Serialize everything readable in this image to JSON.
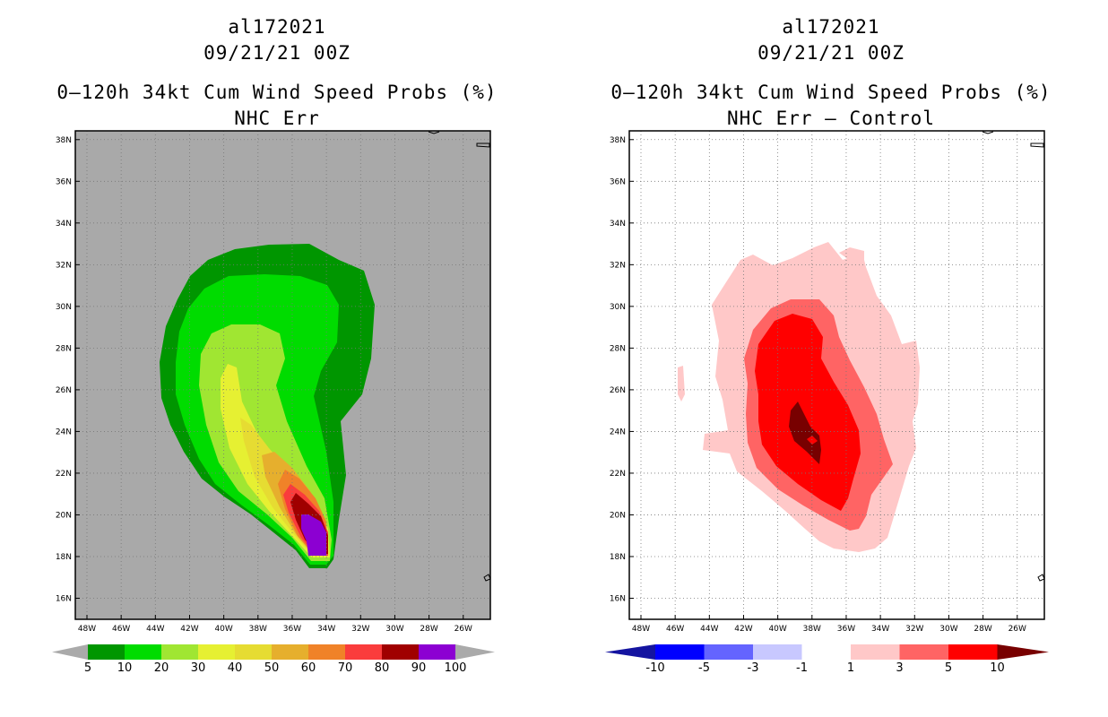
{
  "panels": [
    {
      "storm_id": "al172021",
      "datetime": "09/21/21 00Z",
      "product": "0–120h 34kt Cum Wind Speed Probs (%)",
      "subtitle": "NHC Err",
      "background": "#a9a9a9",
      "colorbar": {
        "labels": [
          "5",
          "10",
          "20",
          "30",
          "40",
          "50",
          "60",
          "70",
          "80",
          "90",
          "100"
        ],
        "colors": [
          "#aaaaaa",
          "#009600",
          "#00dc00",
          "#a0e632",
          "#e6f032",
          "#e6dc32",
          "#e6af2d",
          "#f08228",
          "#fa3c3c",
          "#a00000",
          "#8c00d2",
          "#aaaaaa"
        ]
      }
    },
    {
      "storm_id": "al172021",
      "datetime": "09/21/21 00Z",
      "product": "0–120h 34kt Cum Wind Speed Probs (%)",
      "subtitle": "NHC Err – Control",
      "background": "#ffffff",
      "colorbar": {
        "labels": [
          "-10",
          "-5",
          "-3",
          "-1",
          "1",
          "3",
          "5",
          "10"
        ],
        "colors": [
          "#1414a0",
          "#0000ff",
          "#6464ff",
          "#c8c8ff",
          "#ffffff",
          "#ffc8c8",
          "#ff6464",
          "#ff0000",
          "#780000"
        ]
      }
    }
  ],
  "chart_data": {
    "type": "map-contour",
    "projection": "lat-lon",
    "lon_range": [
      -49,
      -25
    ],
    "lat_range": [
      15,
      38.5
    ],
    "x_ticks": [
      "48W",
      "46W",
      "44W",
      "42W",
      "40W",
      "38W",
      "36W",
      "34W",
      "32W",
      "30W",
      "28W",
      "26W"
    ],
    "y_ticks": [
      "16N",
      "18N",
      "20N",
      "22N",
      "24N",
      "26N",
      "28N",
      "30N",
      "32N",
      "34N",
      "36N",
      "38N"
    ],
    "grid": true,
    "max_probability_location": {
      "lon": -35,
      "lat": 19
    },
    "left_panel_levels_percent": [
      5,
      10,
      20,
      30,
      40,
      50,
      60,
      70,
      80,
      90,
      100
    ],
    "right_panel_levels": [
      -10,
      -5,
      -3,
      -1,
      1,
      3,
      5,
      10
    ]
  }
}
